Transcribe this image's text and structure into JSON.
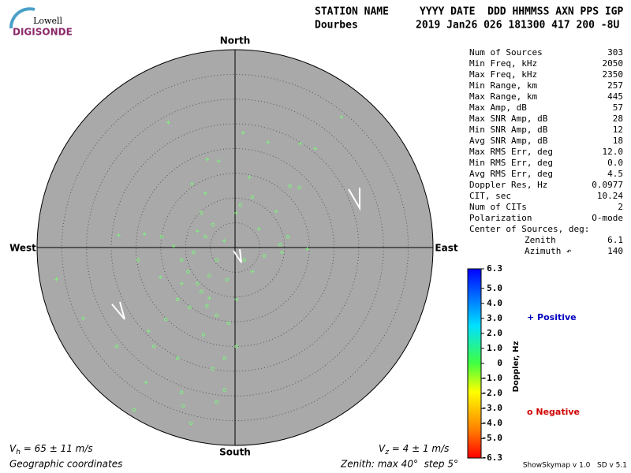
{
  "logo": {
    "top": "Lowell",
    "bottom": "DIGISONDE"
  },
  "header": {
    "line1": "STATION NAME     YYYY DATE  DDD HHMMSS AXN PPS IGP",
    "station": "Dourbes",
    "line2": "2019 Jan26 026 181300 417 200 -8U"
  },
  "compass": {
    "north": "North",
    "south": "South",
    "west": "West",
    "east": "East"
  },
  "skymap": {
    "zenith_max": 40,
    "zenith_step": 5,
    "positive_color": "#7ff07f",
    "negative_color": "#7ff07f",
    "positive": [
      [
        -13.5,
        25.3
      ],
      [
        21.5,
        26.4
      ],
      [
        1.6,
        23.2
      ],
      [
        6.7,
        21.3
      ],
      [
        13.2,
        21.0
      ],
      [
        16.2,
        20.0
      ],
      [
        -5.6,
        17.8
      ],
      [
        -3.3,
        17.5
      ],
      [
        -8.7,
        12.9
      ],
      [
        2.9,
        14.2
      ],
      [
        -6.0,
        11.0
      ],
      [
        0.2,
        7.0
      ],
      [
        8.3,
        7.3
      ],
      [
        -23.5,
        2.5
      ],
      [
        -18.3,
        2.7
      ],
      [
        -12.4,
        0.3
      ],
      [
        -7.6,
        3.3
      ],
      [
        -2.2,
        1.4
      ],
      [
        4.8,
        3.8
      ],
      [
        14.6,
        -0.3
      ],
      [
        -36.1,
        -6.4
      ],
      [
        -15.1,
        -6.0
      ],
      [
        -10.8,
        -7.3
      ],
      [
        -5.2,
        -10.2
      ],
      [
        -30.7,
        -14.3
      ],
      [
        -18.0,
        -27.3
      ],
      [
        0.3,
        -10.5
      ],
      [
        3.5,
        -4.9
      ],
      [
        9.5,
        -1.0
      ],
      [
        -17.5,
        -16.9
      ]
    ],
    "negative": [
      [
        -8.9,
        -35.5
      ],
      [
        -10.8,
        -29.3
      ],
      [
        -20.4,
        -32.8
      ],
      [
        -23.9,
        -20.0
      ],
      [
        -16.4,
        -20.0
      ],
      [
        -11.6,
        -22.4
      ],
      [
        -4.5,
        -24.5
      ],
      [
        -2.1,
        -28.8
      ],
      [
        -6.4,
        -17.6
      ],
      [
        -9.2,
        -12.1
      ],
      [
        -6.8,
        -8.9
      ],
      [
        -5.2,
        -5.7
      ],
      [
        -3.7,
        -2.5
      ],
      [
        -8.4,
        -1.0
      ],
      [
        -9.5,
        -4.9
      ],
      [
        -11.6,
        -10.5
      ],
      [
        -14.0,
        -14.5
      ],
      [
        -1.3,
        -15.3
      ],
      [
        0.3,
        -20.0
      ],
      [
        -3.7,
        -13.7
      ],
      [
        -5.7,
        -11.8
      ],
      [
        -7.6,
        -7.3
      ],
      [
        -1.6,
        -6.5
      ],
      [
        1.9,
        -2.5
      ],
      [
        5.9,
        -1.7
      ],
      [
        9.1,
        0.6
      ],
      [
        10.7,
        2.2
      ],
      [
        13.0,
        12.1
      ],
      [
        11.1,
        12.4
      ],
      [
        3.5,
        10.2
      ],
      [
        1.1,
        8.6
      ],
      [
        -6.8,
        7.0
      ],
      [
        -4.5,
        4.6
      ],
      [
        -6.0,
        2.2
      ],
      [
        -10.8,
        -2.5
      ],
      [
        -14.8,
        2.2
      ],
      [
        -19.6,
        -2.5
      ],
      [
        -2.1,
        -22.4
      ],
      [
        -3.7,
        -31.2
      ],
      [
        -10.5,
        -32.0
      ]
    ]
  },
  "stats": [
    [
      "Num of Sources",
      "303"
    ],
    [
      "Min Freq, kHz",
      "2050"
    ],
    [
      "Max Freq, kHz",
      "2350"
    ],
    [
      "Min Range, km",
      "257"
    ],
    [
      "Max Range, km",
      "445"
    ],
    [
      "Max Amp, dB",
      "57"
    ],
    [
      "Max SNR Amp, dB",
      "28"
    ],
    [
      "Min SNR Amp, dB",
      "12"
    ],
    [
      "Avg SNR Amp, dB",
      "18"
    ],
    [
      "Max RMS Err, deg",
      "12.0"
    ],
    [
      "Min RMS Err, deg",
      "0.0"
    ],
    [
      "Avg RMS Err, deg",
      "4.5"
    ],
    [
      "Doppler Res, Hz",
      "0.0977"
    ],
    [
      "CIT, sec",
      "10.24"
    ],
    [
      "Num of CITs",
      "2"
    ],
    [
      "Polarization",
      "O-mode"
    ]
  ],
  "center": {
    "title": "Center of Sources, deg:",
    "rows": [
      [
        "Zenith",
        "6.1"
      ],
      [
        "Azimuth ↶",
        "140"
      ]
    ]
  },
  "colorbar": {
    "title": "Doppler, Hz",
    "lim": [
      -6.3,
      6.3
    ],
    "ticks": [
      6.3,
      {
        "value": 5,
        "label": "5.0"
      },
      {
        "value": 4,
        "label": "4.0"
      },
      {
        "value": 3,
        "label": "3.0"
      },
      {
        "value": 2,
        "label": "2.0"
      },
      {
        "value": 1,
        "label": "1.0"
      },
      0,
      {
        "value": -1,
        "label": "-1.0"
      },
      {
        "value": -2,
        "label": "-2.0"
      },
      {
        "value": -3,
        "label": "-3.0"
      },
      {
        "value": -4,
        "label": "-4.0"
      },
      {
        "value": -5,
        "label": "-5.0"
      },
      -6.3
    ]
  },
  "legend": {
    "positive": "Positive",
    "negative": "Negative"
  },
  "footer": {
    "vh": [
      "V",
      "h",
      " = 65 ± 11 m/s"
    ],
    "vz": [
      "V",
      "z",
      " = 4 ± 1 m/s"
    ],
    "coords": "Geographic coordinates",
    "zenith": "Zenith: max 40°  step 5°",
    "version": "ShowSkymap v 1.0   SD v 5.1"
  }
}
